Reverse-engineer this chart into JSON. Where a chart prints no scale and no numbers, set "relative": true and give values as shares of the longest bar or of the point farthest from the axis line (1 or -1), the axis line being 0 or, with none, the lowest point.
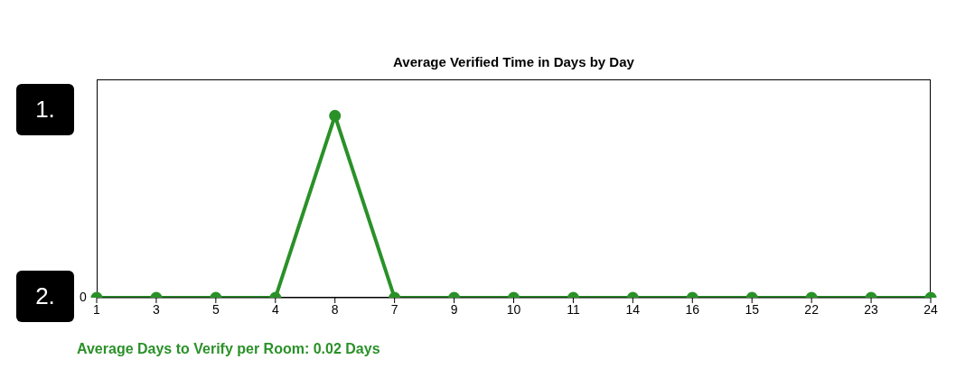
{
  "chart_data": {
    "type": "line",
    "title": "Average Verified Time in Days by Day",
    "categories": [
      "1",
      "3",
      "5",
      "4",
      "8",
      "7",
      "9",
      "10",
      "11",
      "14",
      "16",
      "15",
      "22",
      "23",
      "24"
    ],
    "series": [
      {
        "color": "#2a9128",
        "values": [
          0,
          0,
          0,
          0,
          1,
          0,
          0,
          0,
          0,
          0,
          0,
          0,
          0,
          0,
          0
        ]
      }
    ],
    "relative": true,
    "grid": false,
    "legend": false,
    "marker": "circle",
    "line_style": "solid",
    "annotations": [
      "1.",
      "2.",
      "0",
      "Average Days to Verify per Room: 0.02 Days"
    ]
  }
}
